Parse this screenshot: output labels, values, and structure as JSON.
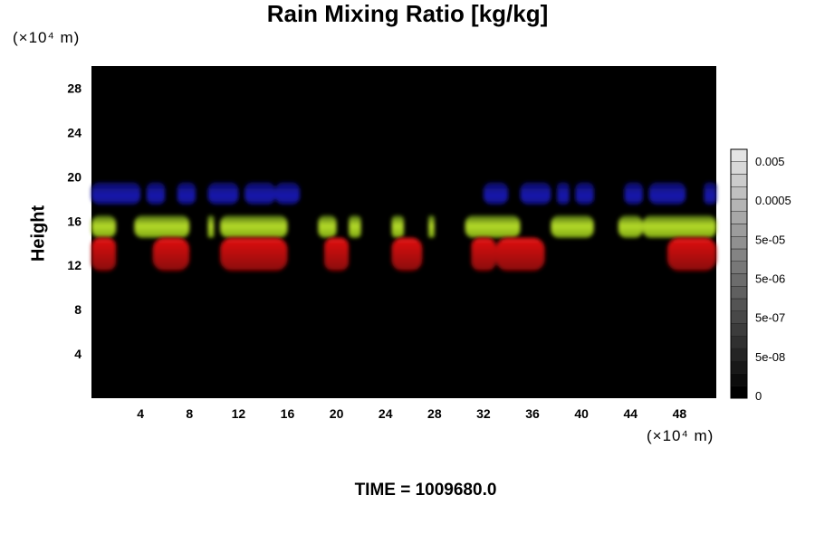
{
  "chart_data": {
    "type": "heatmap",
    "title": "Rain Mixing Ratio [kg/kg]",
    "ylabel": "Height",
    "x_unit": "(×10⁴ m)",
    "y_unit": "(×10⁴ m)",
    "footer": "TIME = 1009680.0",
    "xlim": [
      0,
      51
    ],
    "ylim": [
      0,
      30
    ],
    "x_ticks": [
      "4",
      "8",
      "12",
      "16",
      "20",
      "24",
      "28",
      "32",
      "36",
      "40",
      "44",
      "48"
    ],
    "y_ticks": [
      "4",
      "8",
      "12",
      "16",
      "20",
      "24",
      "28"
    ],
    "background_color": "#000000",
    "colorbar": {
      "labels": [
        "0.005",
        "0.0005",
        "5e-05",
        "5e-06",
        "5e-07",
        "5e-08",
        "0"
      ],
      "levels": 20
    },
    "regions": [
      {
        "color": "#1414b4",
        "layer": "upper",
        "height_range": [
          17.5,
          19.5
        ],
        "x_extents": [
          [
            0,
            4
          ],
          [
            4.5,
            6
          ],
          [
            7,
            8.5
          ],
          [
            9.5,
            12
          ],
          [
            12.5,
            15
          ],
          [
            15,
            17
          ],
          [
            32,
            34
          ],
          [
            35,
            37.5
          ],
          [
            38,
            39
          ],
          [
            39.5,
            41
          ],
          [
            43.5,
            45
          ],
          [
            45.5,
            48.5
          ],
          [
            50,
            51
          ]
        ]
      },
      {
        "color": "#a6d41a",
        "layer": "middle",
        "height_range": [
          14.5,
          16.5
        ],
        "x_extents": [
          [
            0,
            2
          ],
          [
            3.5,
            8
          ],
          [
            9.5,
            10
          ],
          [
            10.5,
            16
          ],
          [
            18.5,
            20
          ],
          [
            21,
            22
          ],
          [
            24.5,
            25.5
          ],
          [
            27.5,
            28
          ],
          [
            30.5,
            35
          ],
          [
            37.5,
            41
          ],
          [
            43,
            45
          ],
          [
            45,
            51
          ]
        ]
      },
      {
        "color": "#d20a0a",
        "layer": "lower",
        "height_range": [
          11.5,
          14.5
        ],
        "x_extents": [
          [
            0,
            2
          ],
          [
            5,
            8
          ],
          [
            10.5,
            16
          ],
          [
            19,
            21
          ],
          [
            24.5,
            27
          ],
          [
            31,
            33
          ],
          [
            33,
            37
          ],
          [
            47,
            51
          ]
        ]
      }
    ]
  }
}
